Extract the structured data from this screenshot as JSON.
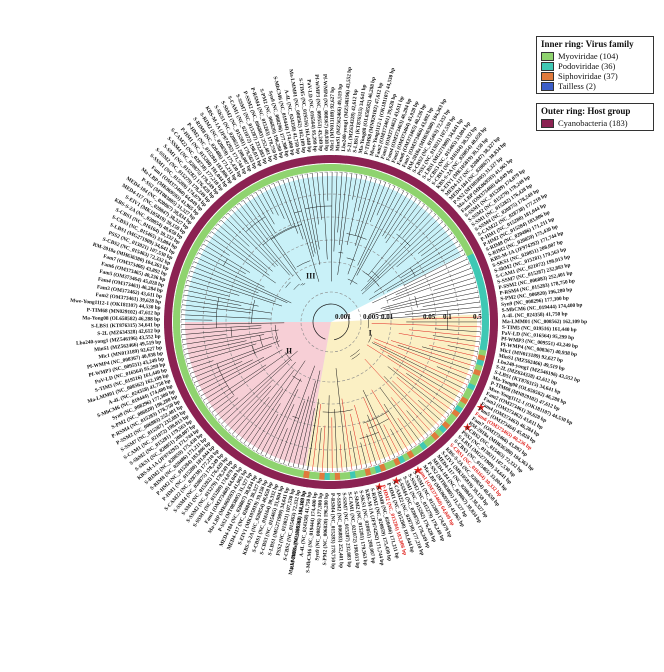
{
  "legend": {
    "inner_title": "Inner ring: Virus family",
    "families": [
      {
        "label": "Myoviridae (104)",
        "color": "#8fd36f"
      },
      {
        "label": "Podoviridae (36)",
        "color": "#3fc8b4"
      },
      {
        "label": "Siphoviridae (37)",
        "color": "#e07a3c"
      },
      {
        "label": "Tailless (2)",
        "color": "#3b5ec9"
      }
    ],
    "outer_title": "Outer ring: Host group",
    "hosts": [
      {
        "label": "Cyanobacteria (183)",
        "color": "#8b2252"
      }
    ]
  },
  "scale_labels": [
    "0.001",
    "0.005",
    "0.01",
    "0.05",
    "0.1",
    "0.5"
  ],
  "clade_labels": [
    "III",
    "II",
    "I"
  ],
  "colors": {
    "clade_iii": "#c9f1f8",
    "clade_ii": "#f7cfd6",
    "clade_i": "#fbf0c4",
    "host_ring": "#8b2252",
    "highlight": "#e0201b",
    "branch": "#1a1a1a"
  },
  "labels_visible": [
    "RM-2018a (MH636380) 104,363 bp",
    "S-CBS2 (NC_015463) 72,332 bp",
    "PSS2 (NC_013021) 107,530 bp",
    "S-LBS1 (MG271909) 34,641 bp",
    "S-CBS3 (NC_015465) 33,004 bp",
    "S-CBS1 (NC_016164) 30,332 bp",
    "KBS-S-2A (NC_020854) 40,658 bp",
    "S-EIV1 (MK105819) 39,158 bp",
    "MED4-117 (NC_020847) 38,327 bp",
    "MED4-184 (NC_020867) 38,834 bp",
    "P-SS2 (MT083805) 31,327 bp",
    "Ma-LBP (MK069593) 41,965 bp",
    "Fam1 (OM373460) 64,049 bp",
    "S-SSM1 (NC_015289) 174,079 bp",
    "S-SSM2 (NC_015279) 178,249 bp",
    "S-SM1 (NC_015282) 176,428 bp",
    "S-SSM4 (NC_020875) 178,249 bp",
    "S-CAM22 (NC_028738) 177,210 bp",
    "P-HM1 (NC_015280) 181,044 bp",
    "P-HM2 (NC_015284) 183,806 bp",
    "S-RIM8 (NC_020486) 171,211 bp",
    "S-RIM2 (NC_020859) 175,430 bp",
    "KBS-M-1A (JF974292) 171,744 bp",
    "S-SKS1 (NC_020851) 208,007 bp",
    "S-ShM2 (NC_015281) 179,563 bp",
    "S-CAM1 (NC_021072) 198,013 bp",
    "S-SSM7 (NC_015287) 232,883 bp",
    "P-SSM2 (NC_006883) 252,401 bp",
    "P-RSM4 (NC_015283) 178,750 bp",
    "S-PM2 (NC_006820) 196,280 bp",
    "Syn9 (NC_008296) 177,300 bp",
    "S-MbCM6 (NC_019444) 174,400 bp",
    "A-4L (NC_024358) 41,750 bp",
    "Ma-LMM01 (NC_008562) 162,109 bp",
    "S-TIM5 (NC_019516) 161,440 bp",
    "PaV-LD (NC_016564) 95,299 bp",
    "Pf-WMP3 (NC_009551) 43,249 bp",
    "Pf-WMP4 (NC_008367) 40,938 bp",
    "Mic1 (MN013189) 92,627 bp",
    "MinS1 (MZ562466) 49,519 bp",
    "Lbo240-yong1 (MZ546196) 43,552 bp",
    "S-2L (MZ634328) 42,612 bp",
    "S-LBS1 (KT876315) 34,641 bp",
    "Ma-Yong08 (OL658582) 46,288 bp",
    "P-TIM68 (MN029102) 47,612 bp",
    "Mwe-Yong1112-1 (OK181107) 44,530 bp",
    "Fam2 (OM373461) 39,628 bp",
    "Fam3 (OM373462) 43,611 bp",
    "Fam4 (OM373463) 46,284 bp",
    "Fam5 (OM373464) 45,028 bp",
    "Fam6 (OM373465) 40,236 bp",
    "Fam7 (OM373466) 43,892 bp"
  ]
}
